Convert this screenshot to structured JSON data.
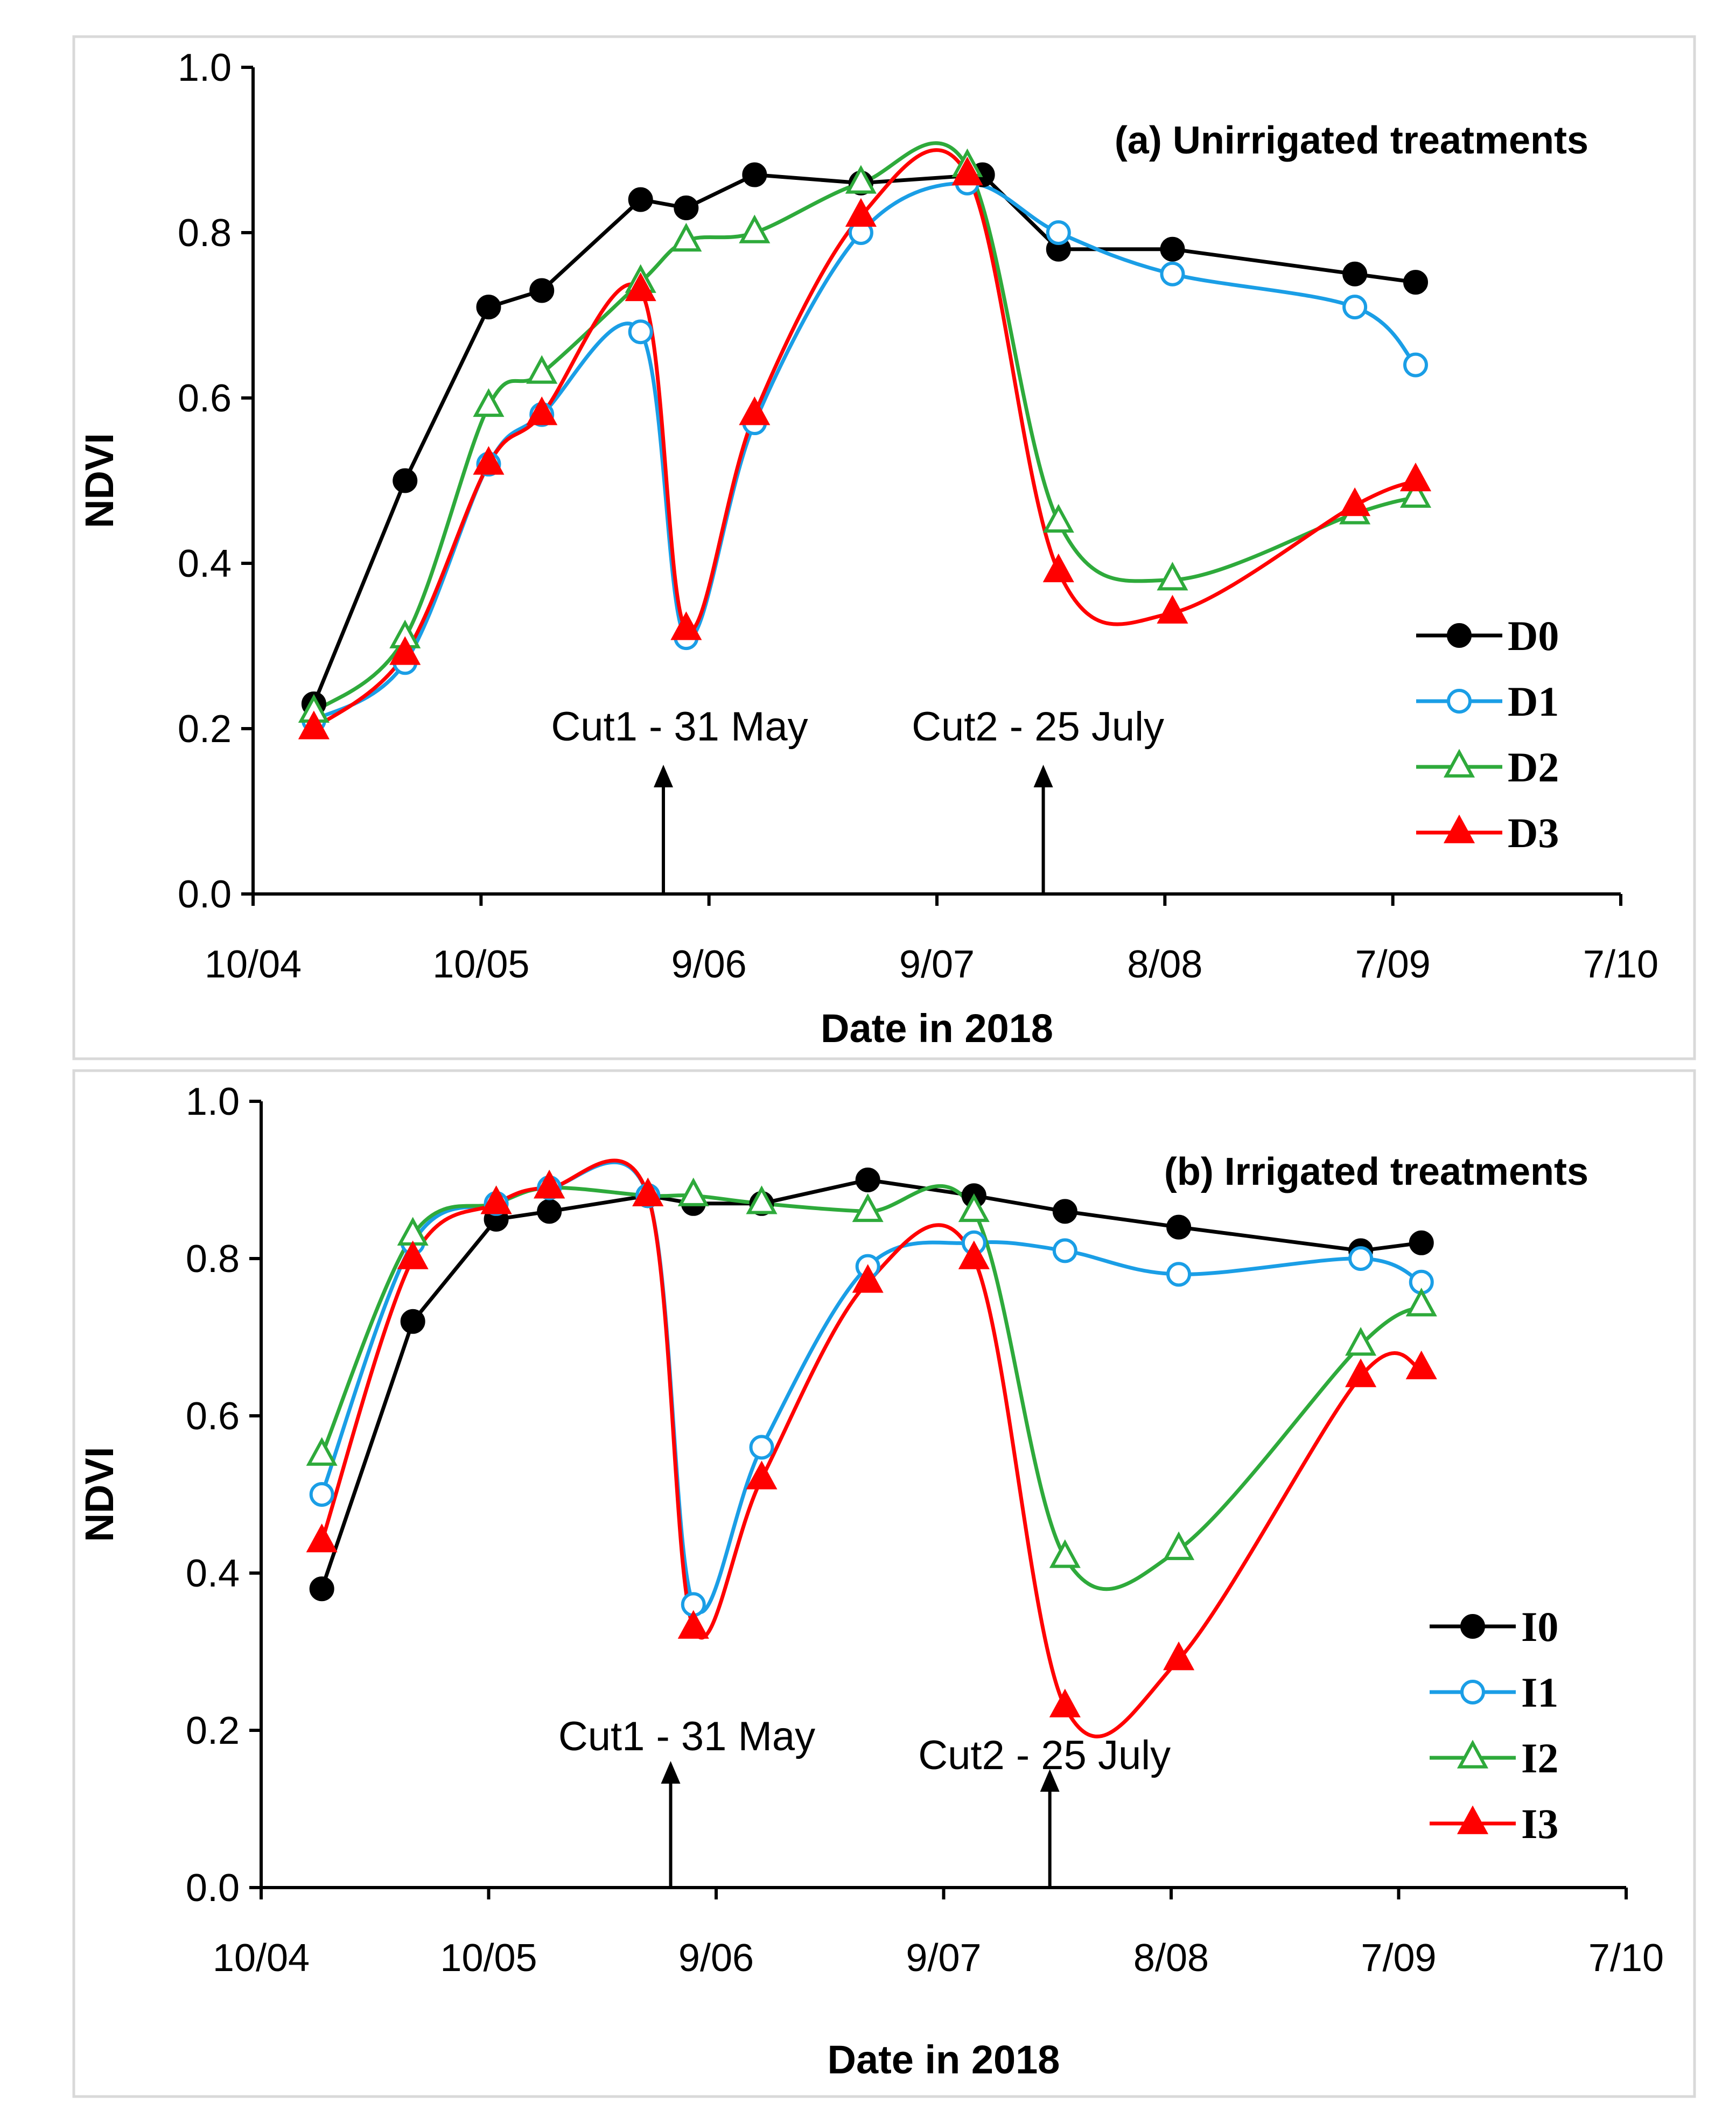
{
  "chart_data": [
    {
      "type": "line",
      "title": "(a) Unirrigated treatments",
      "xlabel": "Date in 2018",
      "ylabel": "NDVI",
      "ylim": [
        0,
        1.0
      ],
      "yticks": [
        0.0,
        0.2,
        0.4,
        0.6,
        0.8,
        1.0
      ],
      "ytick_labels": [
        "0.0",
        "0.2",
        "0.4",
        "0.6",
        "0.8",
        "1.0"
      ],
      "xlim": [
        0,
        180
      ],
      "xticks": [
        0,
        30,
        60,
        90,
        120,
        150,
        180
      ],
      "xtick_labels": [
        "10/04",
        "10/05",
        "9/06",
        "9/07",
        "8/08",
        "7/09",
        "7/10"
      ],
      "grid": false,
      "legend_position": "bottom-right",
      "annotations": [
        {
          "text": "Cut1 - 31 May",
          "x": 54
        },
        {
          "text": "Cut2 - 25 July",
          "x": 104
        }
      ],
      "series": [
        {
          "name": "D0",
          "color": "#000000",
          "marker": "circle",
          "filled": true,
          "smooth": false,
          "x": [
            8,
            20,
            31,
            38,
            51,
            57,
            66,
            80,
            96,
            106,
            121,
            145,
            153
          ],
          "values": [
            0.23,
            0.5,
            0.71,
            0.73,
            0.84,
            0.83,
            0.87,
            0.86,
            0.87,
            0.78,
            0.78,
            0.75,
            0.74
          ]
        },
        {
          "name": "D1",
          "color": "#1a9ee6",
          "marker": "circle",
          "filled": false,
          "smooth": true,
          "x": [
            8,
            20,
            31,
            38,
            51,
            57,
            66,
            80,
            94,
            106,
            121,
            145,
            153
          ],
          "values": [
            0.21,
            0.28,
            0.52,
            0.58,
            0.68,
            0.31,
            0.57,
            0.8,
            0.86,
            0.8,
            0.75,
            0.71,
            0.64
          ]
        },
        {
          "name": "D2",
          "color": "#2eaa3b",
          "marker": "triangle",
          "filled": false,
          "smooth": true,
          "x": [
            8,
            20,
            31,
            38,
            51,
            57,
            66,
            80,
            94,
            106,
            121,
            145,
            153
          ],
          "values": [
            0.22,
            0.31,
            0.59,
            0.63,
            0.74,
            0.79,
            0.8,
            0.86,
            0.88,
            0.45,
            0.38,
            0.46,
            0.48
          ]
        },
        {
          "name": "D3",
          "color": "#ff0000",
          "marker": "triangle",
          "filled": true,
          "smooth": true,
          "x": [
            8,
            20,
            31,
            38,
            51,
            57,
            66,
            80,
            94,
            106,
            121,
            145,
            153
          ],
          "values": [
            0.2,
            0.29,
            0.52,
            0.58,
            0.73,
            0.32,
            0.58,
            0.82,
            0.87,
            0.39,
            0.34,
            0.47,
            0.5
          ]
        }
      ]
    },
    {
      "type": "line",
      "title": "(b) Irrigated treatments",
      "xlabel": "Date in 2018",
      "ylabel": "NDVI",
      "ylim": [
        0,
        1.0
      ],
      "yticks": [
        0.0,
        0.2,
        0.4,
        0.6,
        0.8,
        1.0
      ],
      "ytick_labels": [
        "0.0",
        "0.2",
        "0.4",
        "0.6",
        "0.8",
        "1.0"
      ],
      "xlim": [
        0,
        180
      ],
      "xticks": [
        0,
        30,
        60,
        90,
        120,
        150,
        180
      ],
      "xtick_labels": [
        "10/04",
        "10/05",
        "9/06",
        "9/07",
        "8/08",
        "7/09",
        "7/10"
      ],
      "grid": false,
      "legend_position": "bottom-right",
      "annotations": [
        {
          "text": "Cut1 - 31 May",
          "x": 54
        },
        {
          "text": "Cut2 - 25 July",
          "x": 104
        }
      ],
      "series": [
        {
          "name": "I0",
          "color": "#000000",
          "marker": "circle",
          "filled": true,
          "smooth": false,
          "x": [
            8,
            20,
            31,
            38,
            51,
            57,
            66,
            80,
            94,
            106,
            121,
            145,
            153
          ],
          "values": [
            0.38,
            0.72,
            0.85,
            0.86,
            0.88,
            0.87,
            0.87,
            0.9,
            0.88,
            0.86,
            0.84,
            0.81,
            0.82
          ]
        },
        {
          "name": "I1",
          "color": "#1a9ee6",
          "marker": "circle",
          "filled": false,
          "smooth": true,
          "x": [
            8,
            20,
            31,
            38,
            51,
            57,
            66,
            80,
            94,
            106,
            121,
            145,
            153
          ],
          "values": [
            0.5,
            0.82,
            0.87,
            0.89,
            0.88,
            0.36,
            0.56,
            0.79,
            0.82,
            0.81,
            0.78,
            0.8,
            0.77
          ]
        },
        {
          "name": "I2",
          "color": "#2eaa3b",
          "marker": "triangle",
          "filled": false,
          "smooth": true,
          "x": [
            8,
            20,
            31,
            38,
            51,
            57,
            66,
            80,
            94,
            106,
            121,
            145,
            153
          ],
          "values": [
            0.55,
            0.83,
            0.87,
            0.89,
            0.88,
            0.88,
            0.87,
            0.86,
            0.86,
            0.42,
            0.43,
            0.69,
            0.74
          ]
        },
        {
          "name": "I3",
          "color": "#ff0000",
          "marker": "triangle",
          "filled": true,
          "smooth": true,
          "x": [
            8,
            20,
            31,
            38,
            51,
            57,
            66,
            80,
            94,
            106,
            121,
            145,
            153
          ],
          "values": [
            0.44,
            0.8,
            0.87,
            0.89,
            0.88,
            0.33,
            0.52,
            0.77,
            0.8,
            0.23,
            0.29,
            0.65,
            0.66
          ]
        }
      ]
    }
  ]
}
